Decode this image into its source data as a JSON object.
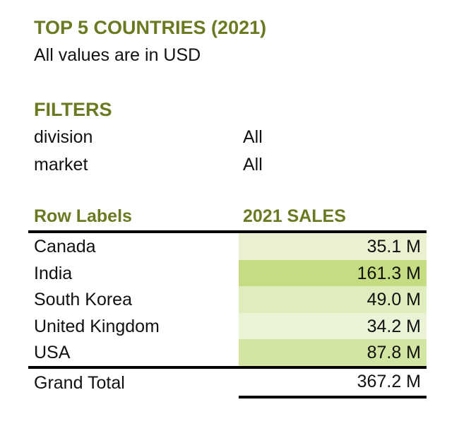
{
  "report": {
    "title": "TOP 5 COUNTRIES (2021)",
    "subtitle": "All values are in USD"
  },
  "filters": {
    "heading": "FILTERS",
    "items": [
      {
        "name": "division",
        "value": "All"
      },
      {
        "name": "market",
        "value": "All"
      }
    ]
  },
  "table": {
    "headers": {
      "label": "Row Labels",
      "value": "2021 SALES"
    },
    "rows": [
      {
        "label": "Canada",
        "value": "35.1 M",
        "amount": 35.1
      },
      {
        "label": "India",
        "value": "161.3 M",
        "amount": 161.3
      },
      {
        "label": "South Korea",
        "value": "49.0 M",
        "amount": 49.0
      },
      {
        "label": "United Kingdom",
        "value": "34.2 M",
        "amount": 34.2
      },
      {
        "label": "USA",
        "value": "87.8 M",
        "amount": 87.8
      }
    ],
    "total": {
      "label": "Grand Total",
      "value": "367.2 M"
    }
  },
  "colors": {
    "accent": "#6b7a20",
    "heat_low": "#ebf3d6",
    "heat_high": "#c5dc82"
  }
}
